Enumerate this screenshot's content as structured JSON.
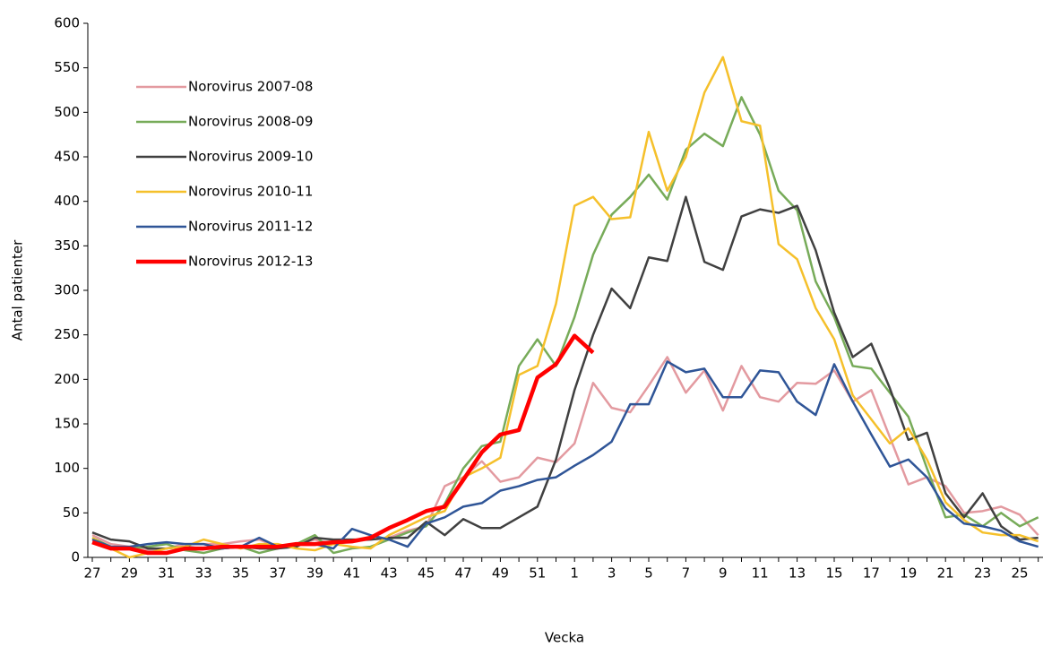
{
  "chart_data": {
    "type": "line",
    "y_label": "Antal patienter",
    "x_label": "Vecka",
    "categories": [
      "27",
      null,
      "29",
      null,
      "31",
      null,
      "33",
      null,
      "35",
      null,
      "37",
      null,
      "39",
      null,
      "41",
      null,
      "43",
      null,
      "45",
      null,
      "47",
      null,
      "49",
      null,
      "51",
      null,
      "1",
      null,
      "3",
      null,
      "5",
      null,
      "7",
      null,
      "9",
      null,
      "11",
      null,
      "13",
      null,
      "15",
      null,
      "17",
      null,
      "19",
      null,
      "21",
      null,
      "23",
      null,
      "25",
      null
    ],
    "ylim": [
      0,
      600
    ],
    "yticks": [
      0,
      50,
      100,
      150,
      200,
      250,
      300,
      350,
      400,
      450,
      500,
      550,
      600
    ],
    "legend": "upper left",
    "series": [
      {
        "name": "Norovirus 2007-08",
        "color": "#e39aa0",
        "width": 2.5,
        "values": [
          25,
          15,
          12,
          8,
          10,
          15,
          15,
          15,
          18,
          20,
          12,
          15,
          20,
          15,
          18,
          20,
          22,
          30,
          35,
          80,
          90,
          108,
          85,
          90,
          112,
          107,
          128,
          196,
          168,
          163,
          193,
          225,
          185,
          210,
          165,
          215,
          180,
          175,
          196,
          195,
          210,
          175,
          188,
          135,
          82,
          90,
          80,
          50,
          52,
          57,
          48,
          25
        ]
      },
      {
        "name": "Norovirus 2008-09",
        "color": "#77ab59",
        "width": 2.5,
        "values": [
          22,
          12,
          10,
          12,
          15,
          8,
          5,
          10,
          12,
          5,
          10,
          15,
          25,
          5,
          10,
          12,
          20,
          28,
          35,
          60,
          100,
          125,
          130,
          215,
          245,
          215,
          270,
          340,
          385,
          405,
          430,
          402,
          458,
          476,
          462,
          517,
          475,
          412,
          390,
          310,
          270,
          215,
          212,
          185,
          158,
          100,
          45,
          48,
          35,
          50,
          35,
          45
        ]
      },
      {
        "name": "Norovirus 2009-10",
        "color": "#404040",
        "width": 2.5,
        "values": [
          28,
          20,
          18,
          10,
          10,
          12,
          10,
          10,
          12,
          10,
          10,
          12,
          22,
          20,
          20,
          20,
          22,
          22,
          40,
          25,
          43,
          33,
          33,
          45,
          57,
          110,
          188,
          250,
          302,
          280,
          337,
          333,
          405,
          332,
          323,
          383,
          391,
          387,
          395,
          345,
          275,
          225,
          240,
          190,
          132,
          140,
          72,
          45,
          72,
          35,
          20,
          22
        ]
      },
      {
        "name": "Norovirus 2010-11",
        "color": "#f5c02b",
        "width": 2.5,
        "values": [
          22,
          10,
          0,
          5,
          10,
          12,
          20,
          15,
          10,
          15,
          15,
          10,
          8,
          15,
          12,
          10,
          25,
          35,
          45,
          52,
          90,
          100,
          112,
          205,
          215,
          285,
          395,
          405,
          380,
          382,
          478,
          412,
          450,
          522,
          562,
          490,
          485,
          352,
          335,
          280,
          245,
          182,
          155,
          128,
          145,
          110,
          62,
          42,
          28,
          25,
          25,
          18
        ]
      },
      {
        "name": "Norovirus 2011-12",
        "color": "#2f5597",
        "width": 2.5,
        "values": [
          20,
          12,
          12,
          15,
          17,
          15,
          15,
          10,
          12,
          22,
          12,
          15,
          15,
          10,
          32,
          25,
          20,
          12,
          38,
          45,
          57,
          61,
          75,
          80,
          87,
          90,
          103,
          115,
          130,
          172,
          172,
          220,
          208,
          212,
          180,
          180,
          210,
          208,
          175,
          160,
          217,
          175,
          138,
          102,
          110,
          90,
          55,
          38,
          35,
          30,
          18,
          12
        ]
      },
      {
        "name": "Norovirus 2012-13",
        "color": "#ff0000",
        "width": 4.5,
        "values": [
          17,
          10,
          10,
          5,
          5,
          10,
          10,
          12,
          12,
          12,
          12,
          15,
          15,
          17,
          18,
          22,
          33,
          42,
          52,
          57,
          87,
          118,
          138,
          143,
          202,
          217,
          249,
          230,
          null,
          null,
          null,
          null,
          null,
          null,
          null,
          null,
          null,
          null,
          null,
          null,
          null,
          null,
          null,
          null,
          null,
          null,
          null,
          null,
          null,
          null,
          null,
          null
        ]
      }
    ]
  }
}
